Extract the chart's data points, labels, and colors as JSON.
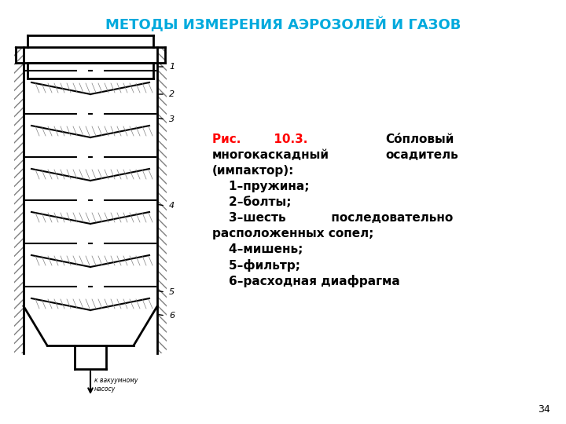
{
  "title": "МЕТОДЫ ИЗМЕРЕНИЯ АЭРОЗОЛЕЙ И ГАЗОВ",
  "title_color": "#00AADD",
  "title_fontsize": 13,
  "background_color": "#FFFFFF",
  "page_number": "34",
  "caption_red": "Рис.        10.3.",
  "caption_black_1": "        Сóпловый",
  "caption_black_2": "многокаскадный           осадитель",
  "caption_black_3": "(импактор):",
  "items": [
    "    1–пружина;",
    "    2–болты;",
    "    3–шесть           последовательно",
    "расположенных сопел;",
    "    4–мишень;",
    "    5–фильтр;",
    "    6–расходная диафрагма"
  ],
  "caption_fontsize": 11,
  "item_fontsize": 11
}
